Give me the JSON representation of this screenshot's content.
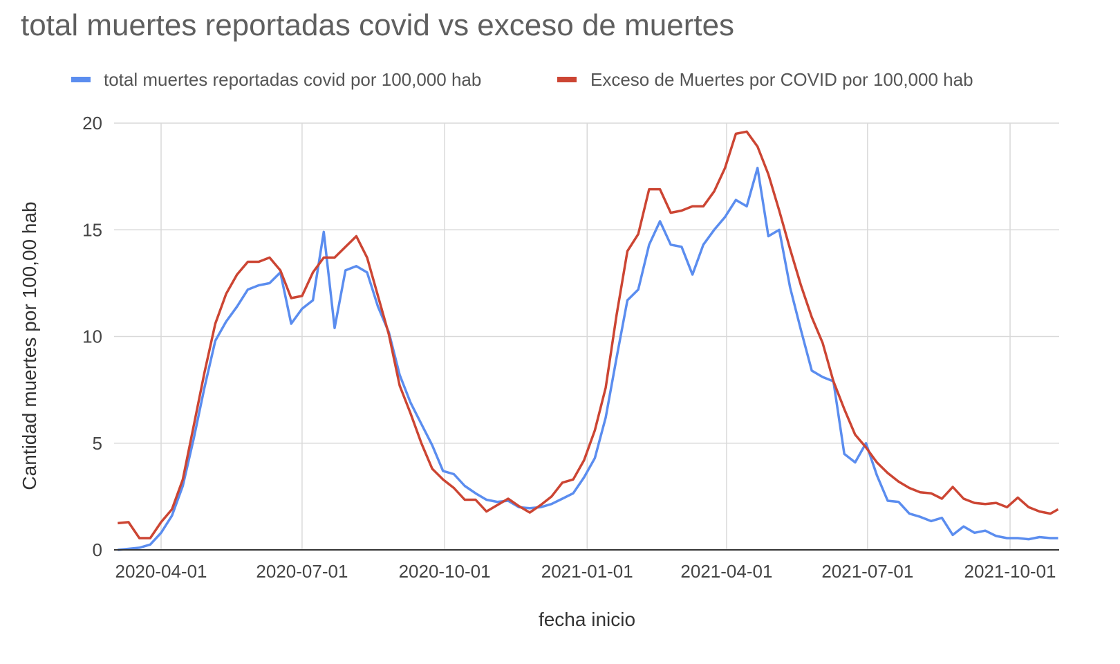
{
  "chart_data": {
    "type": "line",
    "title": "total muertes reportadas covid vs exceso de muertes",
    "xlabel": "fecha inicio",
    "ylabel": "Cantidad muertes por 100,00 hab",
    "ylim": [
      0,
      20
    ],
    "yticks": [
      "0",
      "5",
      "10",
      "15",
      "20"
    ],
    "xticks": [
      "2020-04-01",
      "2020-07-01",
      "2020-10-01",
      "2021-01-01",
      "2021-04-01",
      "2021-07-01",
      "2021-10-01"
    ],
    "grid": true,
    "legend_position": "top",
    "series": [
      {
        "name": "total muertes reportadas covid por 100,000 hab",
        "color": "#5b8def",
        "points": [
          [
            "2020-03-04",
            0.0
          ],
          [
            "2020-03-11",
            0.05
          ],
          [
            "2020-03-18",
            0.1
          ],
          [
            "2020-03-25",
            0.25
          ],
          [
            "2020-04-01",
            0.8
          ],
          [
            "2020-04-08",
            1.6
          ],
          [
            "2020-04-15",
            3.0
          ],
          [
            "2020-04-22",
            5.2
          ],
          [
            "2020-04-29",
            7.6
          ],
          [
            "2020-05-06",
            9.8
          ],
          [
            "2020-05-13",
            10.7
          ],
          [
            "2020-05-20",
            11.4
          ],
          [
            "2020-05-27",
            12.2
          ],
          [
            "2020-06-03",
            12.4
          ],
          [
            "2020-06-10",
            12.5
          ],
          [
            "2020-06-17",
            13.0
          ],
          [
            "2020-06-24",
            10.6
          ],
          [
            "2020-07-01",
            11.3
          ],
          [
            "2020-07-08",
            11.7
          ],
          [
            "2020-07-15",
            14.9
          ],
          [
            "2020-07-22",
            10.4
          ],
          [
            "2020-07-29",
            13.1
          ],
          [
            "2020-08-05",
            13.3
          ],
          [
            "2020-08-12",
            13.0
          ],
          [
            "2020-08-19",
            11.4
          ],
          [
            "2020-08-26",
            10.2
          ],
          [
            "2020-09-02",
            8.2
          ],
          [
            "2020-09-09",
            6.9
          ],
          [
            "2020-09-16",
            5.9
          ],
          [
            "2020-09-23",
            4.9
          ],
          [
            "2020-09-30",
            3.7
          ],
          [
            "2020-10-07",
            3.55
          ],
          [
            "2020-10-14",
            3.0
          ],
          [
            "2020-10-21",
            2.65
          ],
          [
            "2020-10-28",
            2.35
          ],
          [
            "2020-11-04",
            2.25
          ],
          [
            "2020-11-11",
            2.3
          ],
          [
            "2020-11-18",
            2.0
          ],
          [
            "2020-11-25",
            1.95
          ],
          [
            "2020-12-02",
            2.0
          ],
          [
            "2020-12-09",
            2.15
          ],
          [
            "2020-12-16",
            2.4
          ],
          [
            "2020-12-23",
            2.65
          ],
          [
            "2020-12-30",
            3.4
          ],
          [
            "2021-01-06",
            4.3
          ],
          [
            "2021-01-13",
            6.2
          ],
          [
            "2021-01-20",
            9.0
          ],
          [
            "2021-01-27",
            11.7
          ],
          [
            "2021-02-03",
            12.2
          ],
          [
            "2021-02-10",
            14.3
          ],
          [
            "2021-02-17",
            15.4
          ],
          [
            "2021-02-24",
            14.3
          ],
          [
            "2021-03-03",
            14.2
          ],
          [
            "2021-03-10",
            12.9
          ],
          [
            "2021-03-17",
            14.3
          ],
          [
            "2021-03-24",
            15.0
          ],
          [
            "2021-03-31",
            15.6
          ],
          [
            "2021-04-07",
            16.4
          ],
          [
            "2021-04-14",
            16.1
          ],
          [
            "2021-04-21",
            17.9
          ],
          [
            "2021-04-28",
            14.7
          ],
          [
            "2021-05-05",
            15.0
          ],
          [
            "2021-05-12",
            12.3
          ],
          [
            "2021-05-19",
            10.3
          ],
          [
            "2021-05-26",
            8.4
          ],
          [
            "2021-06-02",
            8.1
          ],
          [
            "2021-06-09",
            7.9
          ],
          [
            "2021-06-16",
            4.5
          ],
          [
            "2021-06-23",
            4.1
          ],
          [
            "2021-06-30",
            5.0
          ],
          [
            "2021-07-07",
            3.5
          ],
          [
            "2021-07-14",
            2.3
          ],
          [
            "2021-07-21",
            2.25
          ],
          [
            "2021-07-28",
            1.7
          ],
          [
            "2021-08-04",
            1.55
          ],
          [
            "2021-08-11",
            1.35
          ],
          [
            "2021-08-18",
            1.5
          ],
          [
            "2021-08-25",
            0.7
          ],
          [
            "2021-09-01",
            1.1
          ],
          [
            "2021-09-08",
            0.8
          ],
          [
            "2021-09-15",
            0.9
          ],
          [
            "2021-09-22",
            0.65
          ],
          [
            "2021-09-29",
            0.55
          ],
          [
            "2021-10-06",
            0.55
          ],
          [
            "2021-10-13",
            0.5
          ],
          [
            "2021-10-20",
            0.6
          ],
          [
            "2021-10-27",
            0.55
          ],
          [
            "2021-11-01",
            0.55
          ]
        ]
      },
      {
        "name": "Exceso de Muertes por COVID por 100,000 hab",
        "color": "#cc4533",
        "points": [
          [
            "2020-03-04",
            1.25
          ],
          [
            "2020-03-11",
            1.3
          ],
          [
            "2020-03-18",
            0.55
          ],
          [
            "2020-03-25",
            0.55
          ],
          [
            "2020-04-01",
            1.3
          ],
          [
            "2020-04-08",
            1.9
          ],
          [
            "2020-04-15",
            3.3
          ],
          [
            "2020-04-22",
            5.8
          ],
          [
            "2020-04-29",
            8.3
          ],
          [
            "2020-05-06",
            10.6
          ],
          [
            "2020-05-13",
            12.0
          ],
          [
            "2020-05-20",
            12.9
          ],
          [
            "2020-05-27",
            13.5
          ],
          [
            "2020-06-03",
            13.5
          ],
          [
            "2020-06-10",
            13.7
          ],
          [
            "2020-06-17",
            13.1
          ],
          [
            "2020-06-24",
            11.8
          ],
          [
            "2020-07-01",
            11.9
          ],
          [
            "2020-07-08",
            13.0
          ],
          [
            "2020-07-15",
            13.7
          ],
          [
            "2020-07-22",
            13.7
          ],
          [
            "2020-07-29",
            14.2
          ],
          [
            "2020-08-05",
            14.7
          ],
          [
            "2020-08-12",
            13.7
          ],
          [
            "2020-08-19",
            11.9
          ],
          [
            "2020-08-26",
            10.1
          ],
          [
            "2020-09-02",
            7.7
          ],
          [
            "2020-09-09",
            6.4
          ],
          [
            "2020-09-16",
            5.0
          ],
          [
            "2020-09-23",
            3.8
          ],
          [
            "2020-09-30",
            3.3
          ],
          [
            "2020-10-07",
            2.9
          ],
          [
            "2020-10-14",
            2.35
          ],
          [
            "2020-10-21",
            2.35
          ],
          [
            "2020-10-28",
            1.8
          ],
          [
            "2020-11-04",
            2.1
          ],
          [
            "2020-11-11",
            2.4
          ],
          [
            "2020-11-18",
            2.05
          ],
          [
            "2020-11-25",
            1.75
          ],
          [
            "2020-12-02",
            2.1
          ],
          [
            "2020-12-09",
            2.5
          ],
          [
            "2020-12-16",
            3.15
          ],
          [
            "2020-12-23",
            3.3
          ],
          [
            "2020-12-30",
            4.2
          ],
          [
            "2021-01-06",
            5.6
          ],
          [
            "2021-01-13",
            7.6
          ],
          [
            "2021-01-20",
            11.0
          ],
          [
            "2021-01-27",
            14.0
          ],
          [
            "2021-02-03",
            14.8
          ],
          [
            "2021-02-10",
            16.9
          ],
          [
            "2021-02-17",
            16.9
          ],
          [
            "2021-02-24",
            15.8
          ],
          [
            "2021-03-03",
            15.9
          ],
          [
            "2021-03-10",
            16.1
          ],
          [
            "2021-03-17",
            16.1
          ],
          [
            "2021-03-24",
            16.8
          ],
          [
            "2021-03-31",
            17.9
          ],
          [
            "2021-04-07",
            19.5
          ],
          [
            "2021-04-14",
            19.6
          ],
          [
            "2021-04-21",
            18.9
          ],
          [
            "2021-04-28",
            17.6
          ],
          [
            "2021-05-05",
            15.9
          ],
          [
            "2021-05-12",
            14.1
          ],
          [
            "2021-05-19",
            12.4
          ],
          [
            "2021-05-26",
            10.9
          ],
          [
            "2021-06-02",
            9.7
          ],
          [
            "2021-06-09",
            7.9
          ],
          [
            "2021-06-16",
            6.6
          ],
          [
            "2021-06-23",
            5.4
          ],
          [
            "2021-06-30",
            4.8
          ],
          [
            "2021-07-07",
            4.1
          ],
          [
            "2021-07-14",
            3.6
          ],
          [
            "2021-07-21",
            3.2
          ],
          [
            "2021-07-28",
            2.9
          ],
          [
            "2021-08-04",
            2.7
          ],
          [
            "2021-08-11",
            2.65
          ],
          [
            "2021-08-18",
            2.4
          ],
          [
            "2021-08-25",
            2.95
          ],
          [
            "2021-09-01",
            2.4
          ],
          [
            "2021-09-08",
            2.2
          ],
          [
            "2021-09-15",
            2.15
          ],
          [
            "2021-09-22",
            2.2
          ],
          [
            "2021-09-29",
            2.0
          ],
          [
            "2021-10-06",
            2.45
          ],
          [
            "2021-10-13",
            2.0
          ],
          [
            "2021-10-20",
            1.8
          ],
          [
            "2021-10-27",
            1.7
          ],
          [
            "2021-11-01",
            1.9
          ]
        ]
      }
    ]
  }
}
